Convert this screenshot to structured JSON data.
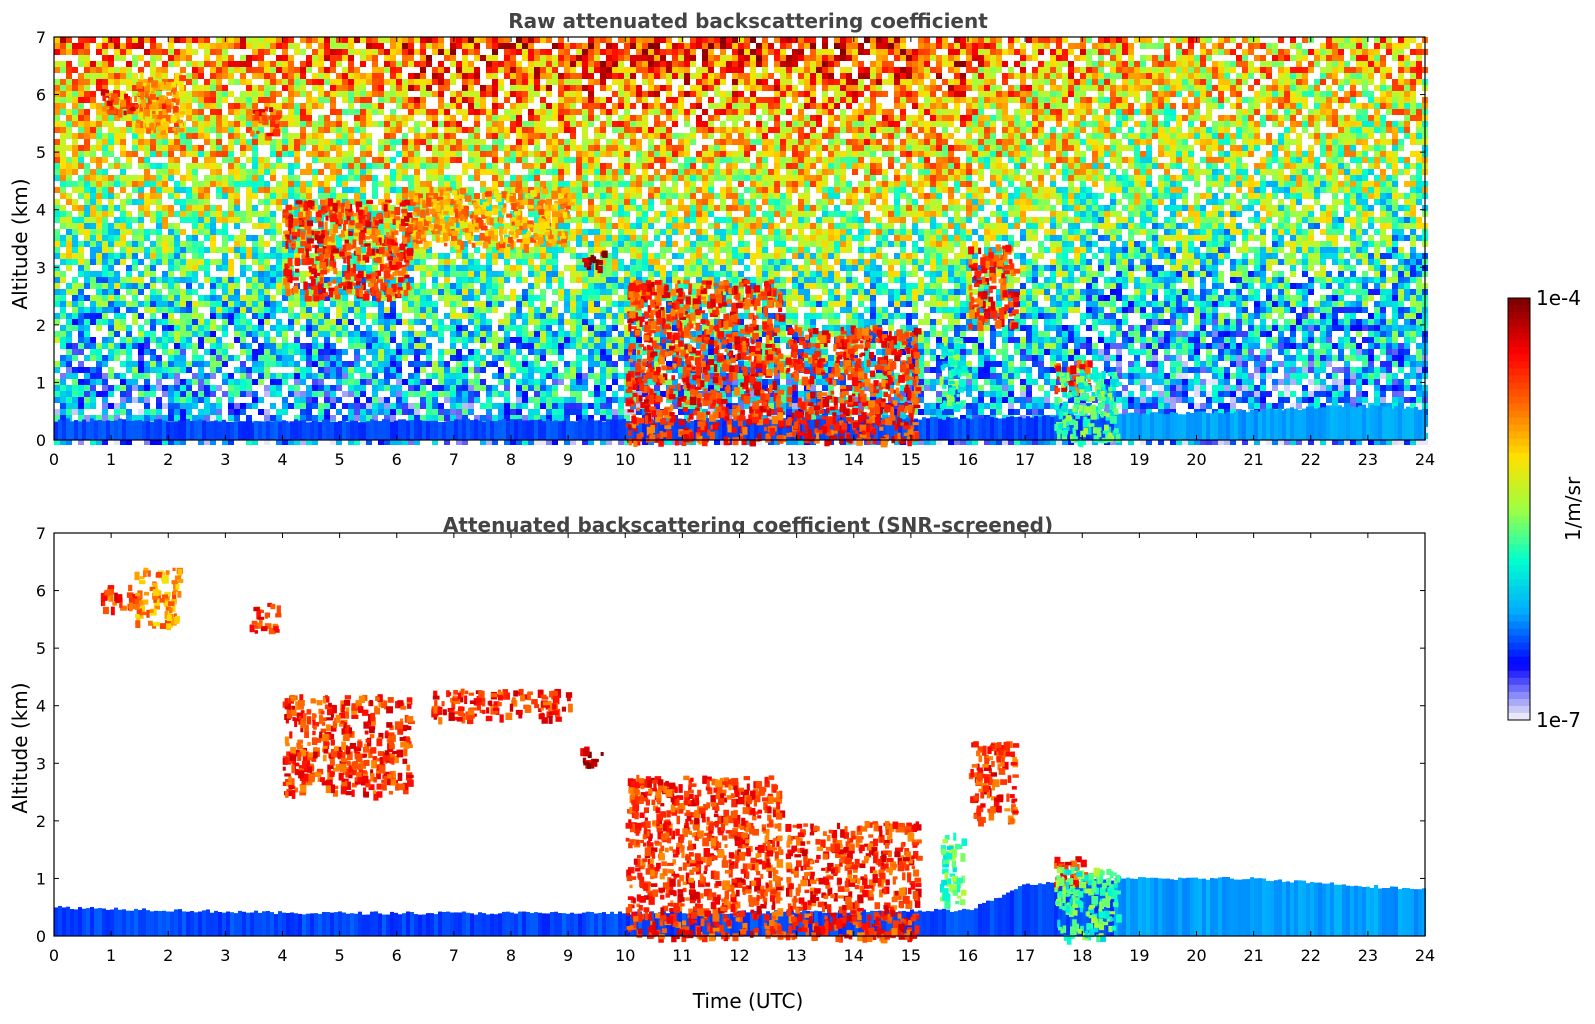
{
  "chart_data": [
    {
      "type": "heatmap",
      "title": "Raw attenuated backscattering coefficient",
      "xlabel": "",
      "ylabel": "Altitude (km)",
      "xlim": [
        0,
        24
      ],
      "ylim": [
        0,
        7
      ],
      "x_ticks": [
        "0",
        "1",
        "2",
        "3",
        "4",
        "5",
        "6",
        "7",
        "8",
        "9",
        "10",
        "11",
        "12",
        "13",
        "14",
        "15",
        "16",
        "17",
        "18",
        "19",
        "20",
        "21",
        "22",
        "23",
        "24"
      ],
      "y_ticks": [
        "0",
        "1",
        "2",
        "3",
        "4",
        "5",
        "6",
        "7"
      ],
      "noise_background": true,
      "boundary_layer_top_km": [
        [
          0,
          0.35
        ],
        [
          4,
          0.33
        ],
        [
          10,
          0.35
        ],
        [
          16,
          0.38
        ],
        [
          19,
          0.45
        ],
        [
          21,
          0.5
        ],
        [
          22.5,
          0.6
        ],
        [
          24,
          0.55
        ]
      ],
      "features": [
        {
          "time": [
            0.8,
            1.4
          ],
          "altitude": [
            5.7,
            6.1
          ],
          "value": "high"
        },
        {
          "time": [
            1.4,
            2.2
          ],
          "altitude": [
            5.4,
            6.4
          ],
          "value": "medium"
        },
        {
          "time": [
            3.4,
            3.9
          ],
          "altitude": [
            5.3,
            5.8
          ],
          "value": "high"
        },
        {
          "time": [
            4.0,
            6.2
          ],
          "altitude": [
            2.5,
            4.2
          ],
          "value": "high"
        },
        {
          "time": [
            6.2,
            9.0
          ],
          "altitude": [
            3.4,
            4.4
          ],
          "value": "medium"
        },
        {
          "time": [
            9.2,
            9.6
          ],
          "altitude": [
            3.0,
            3.3
          ],
          "value": "very high"
        },
        {
          "time": [
            10.0,
            12.7
          ],
          "altitude": [
            0.0,
            2.8
          ],
          "value": "high"
        },
        {
          "time": [
            12.8,
            15.1
          ],
          "altitude": [
            0.0,
            2.0
          ],
          "value": "high"
        },
        {
          "time": [
            15.5,
            15.9
          ],
          "altitude": [
            0.6,
            1.8
          ],
          "value": "low"
        },
        {
          "time": [
            16.0,
            16.8
          ],
          "altitude": [
            2.0,
            3.4
          ],
          "value": "high"
        },
        {
          "time": [
            17.5,
            18.1
          ],
          "altitude": [
            0.9,
            1.4
          ],
          "value": "high"
        },
        {
          "time": [
            17.5,
            18.6
          ],
          "altitude": [
            0.0,
            1.2
          ],
          "value": "low"
        }
      ]
    },
    {
      "type": "heatmap",
      "title": "Attenuated backscattering coefficient (SNR-screened)",
      "xlabel": "Time (UTC)",
      "ylabel": "Altitude (km)",
      "xlim": [
        0,
        24
      ],
      "ylim": [
        0,
        7
      ],
      "x_ticks": [
        "0",
        "1",
        "2",
        "3",
        "4",
        "5",
        "6",
        "7",
        "8",
        "9",
        "10",
        "11",
        "12",
        "13",
        "14",
        "15",
        "16",
        "17",
        "18",
        "19",
        "20",
        "21",
        "22",
        "23",
        "24"
      ],
      "y_ticks": [
        "0",
        "1",
        "2",
        "3",
        "4",
        "5",
        "6",
        "7"
      ],
      "noise_background": false,
      "boundary_layer_top_km": [
        [
          0,
          0.5
        ],
        [
          4,
          0.4
        ],
        [
          10,
          0.4
        ],
        [
          16,
          0.45
        ],
        [
          17,
          0.9
        ],
        [
          19,
          1.0
        ],
        [
          21,
          1.0
        ],
        [
          22.5,
          0.9
        ],
        [
          24,
          0.8
        ]
      ],
      "features": [
        {
          "time": [
            0.8,
            1.4
          ],
          "altitude": [
            5.7,
            6.1
          ],
          "value": "high"
        },
        {
          "time": [
            1.4,
            2.2
          ],
          "altitude": [
            5.4,
            6.4
          ],
          "value": "medium"
        },
        {
          "time": [
            3.4,
            3.9
          ],
          "altitude": [
            5.3,
            5.8
          ],
          "value": "high"
        },
        {
          "time": [
            4.0,
            6.2
          ],
          "altitude": [
            2.5,
            4.2
          ],
          "value": "high"
        },
        {
          "time": [
            6.6,
            9.0
          ],
          "altitude": [
            3.8,
            4.3
          ],
          "value": "high"
        },
        {
          "time": [
            9.2,
            9.6
          ],
          "altitude": [
            3.0,
            3.3
          ],
          "value": "very high"
        },
        {
          "time": [
            10.0,
            12.7
          ],
          "altitude": [
            0.0,
            2.8
          ],
          "value": "high"
        },
        {
          "time": [
            12.8,
            15.1
          ],
          "altitude": [
            0.0,
            2.0
          ],
          "value": "high"
        },
        {
          "time": [
            15.5,
            15.9
          ],
          "altitude": [
            0.6,
            1.8
          ],
          "value": "low"
        },
        {
          "time": [
            16.0,
            16.8
          ],
          "altitude": [
            2.0,
            3.4
          ],
          "value": "high"
        },
        {
          "time": [
            17.5,
            18.1
          ],
          "altitude": [
            0.9,
            1.4
          ],
          "value": "high"
        },
        {
          "time": [
            17.5,
            18.6
          ],
          "altitude": [
            0.0,
            1.2
          ],
          "value": "low"
        }
      ]
    }
  ],
  "colorbar": {
    "label": "1/m/sr",
    "max_label": "1e-4",
    "min_label": "1e-7",
    "scale": "log",
    "range": [
      1e-07,
      0.0001
    ],
    "colormap": [
      "#e8e8f8",
      "#0000ff",
      "#00aaff",
      "#00ffd0",
      "#a0ff40",
      "#ffe000",
      "#ff6a00",
      "#ff0000",
      "#7f0000"
    ]
  }
}
